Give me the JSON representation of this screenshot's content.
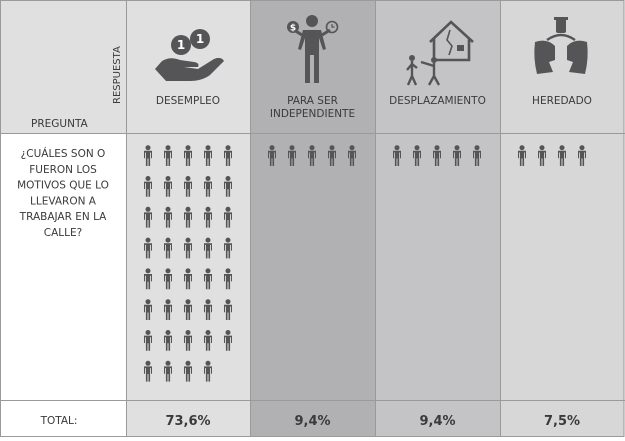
{
  "chart_data": {
    "type": "table",
    "row_header": "PREGUNTA",
    "column_header": "RESPUESTA",
    "question": [
      "¿CUÁLES SON O",
      "FUERON LOS",
      "MOTIVOS QUE LO",
      "LLEVARON A",
      "TRABAJAR EN LA",
      "CALLE?"
    ],
    "total_label": "TOTAL:",
    "categories": [
      {
        "label": [
          "DESEMPLEO"
        ],
        "icon": "hand-coins-icon",
        "value": 73.6,
        "display": "73,6%",
        "figures": 39,
        "bg": "#e0e0e1"
      },
      {
        "label": [
          "PARA SER",
          "INDEPENDIENTE"
        ],
        "icon": "businessman-icon",
        "value": 9.4,
        "display": "9,4%",
        "figures": 5,
        "bg": "#b1b1b3"
      },
      {
        "label": [
          "DESPLAZAMIENTO"
        ],
        "icon": "displacement-icon",
        "value": 9.4,
        "display": "9,4%",
        "figures": 5,
        "bg": "#c4c4c6"
      },
      {
        "label": [
          "HEREDADO"
        ],
        "icon": "inheritance-icon",
        "value": 7.5,
        "display": "7,5%",
        "figures": 4,
        "bg": "#d7d7d8"
      }
    ]
  },
  "colors": {
    "figure": "#555557",
    "text": "#3a3a3a",
    "line": "#9a9a9a",
    "header_bg": "#e0e0e1"
  }
}
